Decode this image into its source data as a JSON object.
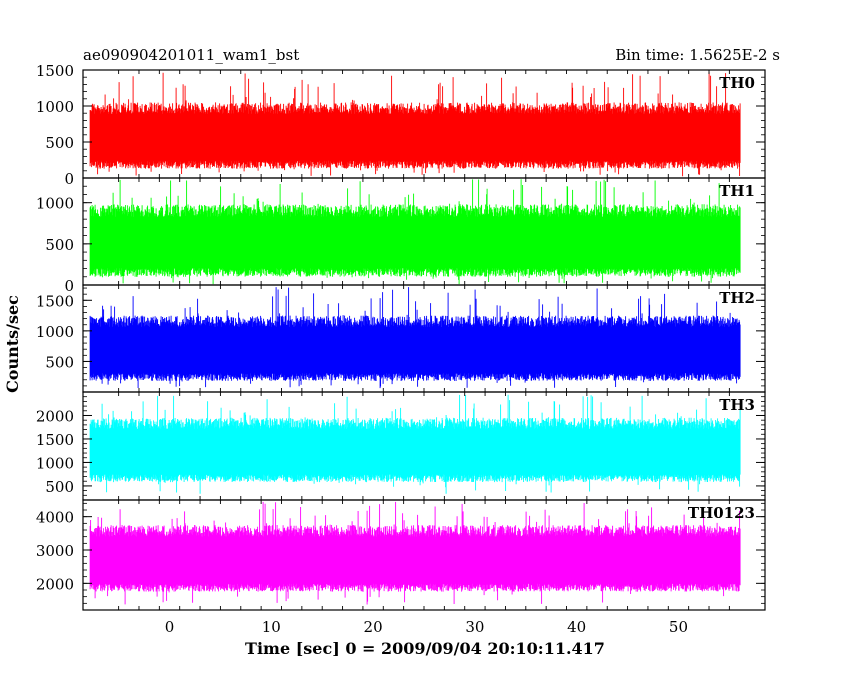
{
  "header": {
    "left_title": "ae090904201011_wam1_bst",
    "right_title": "Bin time: 1.5625E-2 s"
  },
  "chart_data": {
    "type": "line",
    "xlabel": "Time [sec] 0 = 2009/09/04 20:10:11.417",
    "ylabel": "Counts/sec",
    "xlim": [
      -8.5,
      58.5
    ],
    "x_data_range": [
      -7.8,
      56.1
    ],
    "x_ticks": [
      0,
      10,
      20,
      30,
      40,
      50
    ],
    "x_tick_labels": [
      "0",
      "10",
      "20",
      "30",
      "40",
      "50"
    ],
    "panels": [
      {
        "name": "TH0",
        "color": "#ff0000",
        "ylim": [
          0,
          1500
        ],
        "y_ticks": [
          0,
          500,
          1000,
          1500
        ],
        "y_tick_labels": [
          "0",
          "500",
          "1000",
          "1500"
        ],
        "typical_low": 130,
        "typical_high": 1050,
        "peak": 1480,
        "trough": 20
      },
      {
        "name": "TH1",
        "color": "#00ff00",
        "ylim": [
          0,
          1300
        ],
        "y_ticks": [
          0,
          500,
          1000
        ],
        "y_tick_labels": [
          "0",
          "500",
          "1000"
        ],
        "typical_low": 100,
        "typical_high": 980,
        "peak": 1290,
        "trough": 10
      },
      {
        "name": "TH2",
        "color": "#0000ff",
        "ylim": [
          0,
          1750
        ],
        "y_ticks": [
          500,
          1000,
          1500
        ],
        "y_tick_labels": [
          "500",
          "1000",
          "1500"
        ],
        "typical_low": 180,
        "typical_high": 1250,
        "peak": 1720,
        "trough": 60
      },
      {
        "name": "TH3",
        "color": "#00ffff",
        "ylim": [
          200,
          2500
        ],
        "y_ticks": [
          500,
          1000,
          1500,
          2000
        ],
        "y_tick_labels": [
          "500",
          "1000",
          "1500",
          "2000"
        ],
        "typical_low": 580,
        "typical_high": 1950,
        "peak": 2450,
        "trough": 330
      },
      {
        "name": "TH0123",
        "color": "#ff00ff",
        "ylim": [
          1200,
          4500
        ],
        "y_ticks": [
          2000,
          3000,
          4000
        ],
        "y_tick_labels": [
          "2000",
          "3000",
          "4000"
        ],
        "typical_low": 1750,
        "typical_high": 3750,
        "peak": 4450,
        "trough": 1350
      }
    ]
  }
}
